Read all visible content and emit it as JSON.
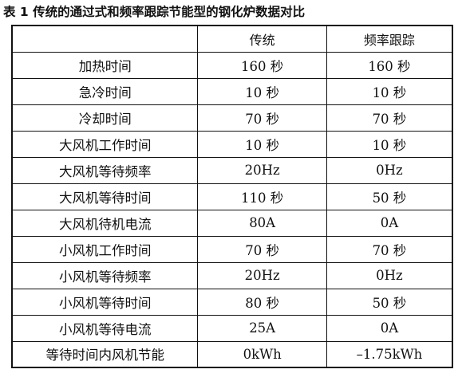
{
  "caption": "表 1  传统的通过式和频率跟踪节能型的钢化炉数据对比",
  "table": {
    "headers": [
      "",
      "传统",
      "频率跟踪"
    ],
    "rows": [
      [
        "加热时间",
        "160 秒",
        "160 秒"
      ],
      [
        "急冷时间",
        "10 秒",
        "10 秒"
      ],
      [
        "冷却时间",
        "70 秒",
        "70 秒"
      ],
      [
        "大风机工作时间",
        "10 秒",
        "10 秒"
      ],
      [
        "大风机等待频率",
        "20Hz",
        "0Hz"
      ],
      [
        "大风机等待时间",
        "110 秒",
        "50 秒"
      ],
      [
        "大风机待机电流",
        "80A",
        "0A"
      ],
      [
        "小风机工作时间",
        "70 秒",
        "70 秒"
      ],
      [
        "小风机等待频率",
        "20Hz",
        "0Hz"
      ],
      [
        "小风机等待时间",
        "80 秒",
        "50 秒"
      ],
      [
        "小风机等待电流",
        "25A",
        "0A"
      ],
      [
        "等待时间内风机节能",
        "0kWh",
        "–1.75kWh"
      ]
    ]
  }
}
